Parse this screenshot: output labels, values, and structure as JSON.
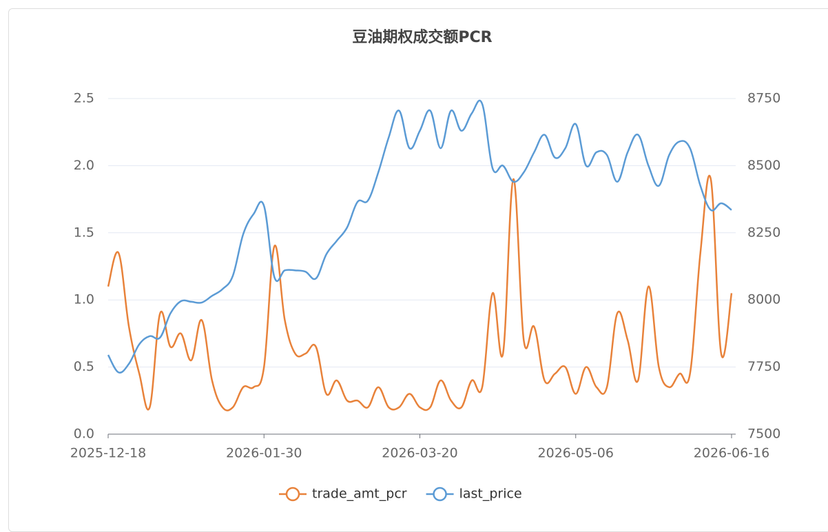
{
  "chart_data": {
    "type": "line",
    "title": "豆油期权成交额PCR",
    "categories": [
      "2025-12-18",
      null,
      null,
      null,
      null,
      null,
      null,
      null,
      null,
      null,
      null,
      null,
      null,
      null,
      null,
      "2026-01-30",
      null,
      null,
      null,
      null,
      null,
      null,
      null,
      null,
      null,
      null,
      null,
      null,
      null,
      null,
      "2026-03-20",
      null,
      null,
      null,
      null,
      null,
      null,
      null,
      null,
      null,
      null,
      null,
      null,
      null,
      null,
      "2026-05-06",
      null,
      null,
      null,
      null,
      null,
      null,
      null,
      null,
      null,
      null,
      null,
      null,
      null,
      null,
      "2026-06-16"
    ],
    "series": [
      {
        "name": "trade_amt_pcr",
        "color": "#e8823a",
        "axis": "y",
        "values": [
          1.1,
          1.35,
          0.8,
          0.45,
          0.2,
          0.9,
          0.65,
          0.75,
          0.55,
          0.85,
          0.4,
          0.2,
          0.2,
          0.35,
          0.35,
          0.5,
          1.4,
          0.85,
          0.6,
          0.6,
          0.65,
          0.3,
          0.4,
          0.25,
          0.25,
          0.2,
          0.35,
          0.2,
          0.2,
          0.3,
          0.2,
          0.2,
          0.4,
          0.25,
          0.2,
          0.4,
          0.35,
          1.05,
          0.6,
          1.9,
          0.7,
          0.8,
          0.4,
          0.45,
          0.5,
          0.3,
          0.5,
          0.35,
          0.35,
          0.9,
          0.7,
          0.4,
          1.1,
          0.5,
          0.35,
          0.45,
          0.45,
          1.35,
          1.9,
          0.6,
          1.05
        ]
      },
      {
        "name": "last_price",
        "color": "#5b9bd5",
        "axis": "y2",
        "values": [
          7795,
          7730,
          7762,
          7835,
          7865,
          7860,
          7950,
          7995,
          7993,
          7990,
          8015,
          8040,
          8090,
          8245,
          8320,
          8350,
          8085,
          8110,
          8110,
          8105,
          8080,
          8170,
          8220,
          8270,
          8365,
          8370,
          8475,
          8605,
          8705,
          8565,
          8630,
          8705,
          8565,
          8705,
          8630,
          8695,
          8730,
          8490,
          8500,
          8440,
          8475,
          8550,
          8615,
          8530,
          8565,
          8655,
          8500,
          8550,
          8540,
          8440,
          8550,
          8615,
          8500,
          8425,
          8540,
          8590,
          8565,
          8425,
          8335,
          8360,
          8335
        ]
      }
    ],
    "ylim": [
      0,
      2.5
    ],
    "yticks": [
      {
        "value": 0,
        "label": "0.0"
      },
      0.5,
      {
        "value": 1,
        "label": "1.0"
      },
      1.5,
      {
        "value": 2,
        "label": "2.0"
      },
      2.5
    ],
    "y2lim": [
      7500,
      8750
    ],
    "y2ticks": [
      7500,
      7750,
      8000,
      8250,
      8500,
      8750
    ],
    "grid": true
  }
}
